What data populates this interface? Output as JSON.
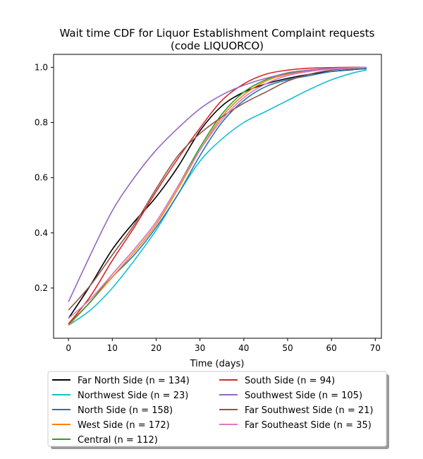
{
  "chart_data": {
    "type": "line",
    "title_line1": "Wait time CDF for Liquor Establishment Complaint  requests",
    "title_line2": "(code LIQUORCO)",
    "xlabel": "Time (days)",
    "ylabel": "",
    "xlim": [
      -3.4,
      71.4
    ],
    "ylim": [
      0.018,
      1.047
    ],
    "xticks": [
      0,
      10,
      20,
      30,
      40,
      50,
      60,
      70
    ],
    "yticks": [
      0.2,
      0.4,
      0.6,
      0.8,
      1.0
    ],
    "ytick_labels": [
      "0.2",
      "0.4",
      "0.6",
      "0.8",
      "1.0"
    ],
    "grid": false,
    "legend_position": "below-plot",
    "legend_columns": 2,
    "series": [
      {
        "name": "Far North Side (n = 134)",
        "color": "#000000",
        "x": [
          0,
          5,
          10,
          15,
          20,
          25,
          30,
          35,
          40,
          45,
          50,
          55,
          60,
          65,
          68
        ],
        "y": [
          0.09,
          0.21,
          0.34,
          0.44,
          0.53,
          0.64,
          0.77,
          0.86,
          0.91,
          0.94,
          0.96,
          0.975,
          0.985,
          0.992,
          0.995
        ]
      },
      {
        "name": "Northwest Side (n = 23)",
        "color": "#17becf",
        "x": [
          0,
          5,
          10,
          15,
          20,
          25,
          30,
          35,
          40,
          45,
          50,
          55,
          60,
          65,
          68
        ],
        "y": [
          0.065,
          0.12,
          0.2,
          0.3,
          0.41,
          0.54,
          0.66,
          0.74,
          0.8,
          0.84,
          0.88,
          0.92,
          0.955,
          0.98,
          0.99
        ]
      },
      {
        "name": "North Side (n = 158)",
        "color": "#1f77b4",
        "x": [
          0,
          5,
          10,
          15,
          20,
          25,
          30,
          35,
          40,
          45,
          50,
          55,
          60,
          65,
          68
        ],
        "y": [
          0.065,
          0.15,
          0.24,
          0.32,
          0.42,
          0.54,
          0.68,
          0.8,
          0.88,
          0.93,
          0.955,
          0.97,
          0.985,
          0.993,
          0.995
        ]
      },
      {
        "name": "West Side (n = 172)",
        "color": "#ff7f0e",
        "x": [
          0,
          5,
          10,
          15,
          20,
          25,
          30,
          35,
          40,
          45,
          50,
          55,
          60,
          65,
          68
        ],
        "y": [
          0.065,
          0.15,
          0.24,
          0.33,
          0.43,
          0.56,
          0.7,
          0.82,
          0.9,
          0.95,
          0.975,
          0.988,
          0.995,
          0.998,
          0.999
        ]
      },
      {
        "name": "Central (n = 112)",
        "color": "#2ca02c",
        "x": [
          0,
          5,
          10,
          15,
          20,
          25,
          30,
          35,
          40,
          45,
          50,
          55,
          60,
          65,
          68
        ],
        "y": [
          0.07,
          0.15,
          0.25,
          0.34,
          0.44,
          0.57,
          0.71,
          0.83,
          0.91,
          0.955,
          0.98,
          0.99,
          0.996,
          0.998,
          0.999
        ]
      },
      {
        "name": "South Side (n = 94)",
        "color": "#d62728",
        "x": [
          0,
          5,
          10,
          15,
          20,
          25,
          30,
          35,
          40,
          45,
          50,
          55,
          60,
          65,
          68
        ],
        "y": [
          0.07,
          0.17,
          0.3,
          0.42,
          0.55,
          0.67,
          0.78,
          0.88,
          0.94,
          0.975,
          0.99,
          0.997,
          0.999,
          1.0,
          1.0
        ]
      },
      {
        "name": "Southwest Side (n = 105)",
        "color": "#9467bd",
        "x": [
          0,
          5,
          10,
          15,
          20,
          25,
          30,
          35,
          40,
          45,
          50,
          55,
          60,
          65,
          68
        ],
        "y": [
          0.15,
          0.32,
          0.48,
          0.6,
          0.7,
          0.78,
          0.85,
          0.9,
          0.935,
          0.96,
          0.978,
          0.99,
          0.996,
          0.999,
          1.0
        ]
      },
      {
        "name": "Far Southwest Side (n = 21)",
        "color": "#8c564b",
        "x": [
          0,
          5,
          10,
          15,
          20,
          25,
          30,
          35,
          40,
          45,
          50,
          55,
          60,
          65,
          68
        ],
        "y": [
          0.12,
          0.21,
          0.32,
          0.43,
          0.56,
          0.68,
          0.76,
          0.82,
          0.87,
          0.91,
          0.95,
          0.975,
          0.99,
          0.997,
          1.0
        ]
      },
      {
        "name": "Far Southeast Side (n = 35)",
        "color": "#e377c2",
        "x": [
          0,
          5,
          10,
          15,
          20,
          25,
          30,
          35,
          40,
          45,
          50,
          55,
          60,
          65,
          68
        ],
        "y": [
          0.09,
          0.16,
          0.25,
          0.34,
          0.44,
          0.57,
          0.7,
          0.81,
          0.89,
          0.94,
          0.97,
          0.985,
          0.994,
          0.998,
          1.0
        ]
      }
    ]
  }
}
